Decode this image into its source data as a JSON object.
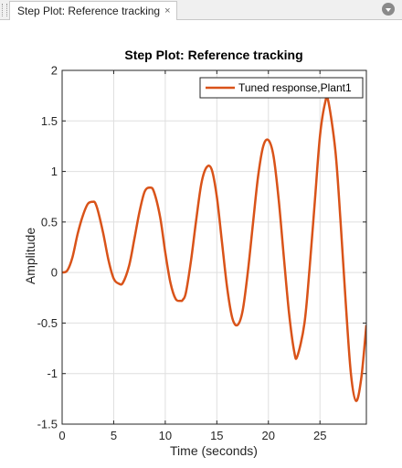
{
  "tab": {
    "title": "Step Plot: Reference tracking",
    "close_glyph": "×",
    "menu_icon": "chevron-down-circle-icon"
  },
  "chart_data": {
    "type": "line",
    "title": "Step Plot: Reference tracking",
    "xlabel": "Time (seconds)",
    "ylabel": "Amplitude",
    "xlim": [
      0,
      29.5
    ],
    "ylim": [
      -1.5,
      2
    ],
    "xticks": [
      0,
      5,
      10,
      15,
      20,
      25
    ],
    "yticks": [
      -1.5,
      -1,
      -0.5,
      0,
      0.5,
      1,
      1.5,
      2
    ],
    "xtick_labels": [
      "0",
      "5",
      "10",
      "15",
      "20",
      "25"
    ],
    "ytick_labels": [
      "-1.5",
      "-1",
      "-0.5",
      "0",
      "0.5",
      "1",
      "1.5",
      "2"
    ],
    "grid": true,
    "legend_position": "top-right",
    "line_color": "#d95319",
    "series": [
      {
        "name": "Tuned response,Plant1",
        "x": [
          0,
          0.5,
          1,
          1.5,
          2,
          2.5,
          3,
          3.2,
          3.5,
          4,
          4.5,
          5,
          5.5,
          5.9,
          6.5,
          7,
          7.5,
          8,
          8.5,
          8.9,
          9.5,
          10,
          10.5,
          11,
          11.5,
          11.7,
          12,
          12.5,
          13,
          13.5,
          14,
          14.5,
          15,
          15.5,
          16,
          16.5,
          17,
          17.5,
          18,
          18.5,
          19,
          19.5,
          20,
          20.5,
          21,
          21.5,
          22,
          22.5,
          22.8,
          23.5,
          24,
          24.5,
          25,
          25.5,
          25.8,
          26.5,
          27,
          27.5,
          28,
          28.5,
          29,
          29.5
        ],
        "y": [
          0,
          0.02,
          0.15,
          0.38,
          0.56,
          0.68,
          0.7,
          0.69,
          0.6,
          0.38,
          0.12,
          -0.06,
          -0.11,
          -0.1,
          0.07,
          0.33,
          0.6,
          0.8,
          0.84,
          0.8,
          0.55,
          0.2,
          -0.1,
          -0.26,
          -0.28,
          -0.27,
          -0.2,
          0.12,
          0.52,
          0.88,
          1.04,
          1.02,
          0.75,
          0.3,
          -0.15,
          -0.45,
          -0.52,
          -0.38,
          0.0,
          0.48,
          0.95,
          1.25,
          1.31,
          1.15,
          0.72,
          0.15,
          -0.4,
          -0.78,
          -0.83,
          -0.5,
          0.05,
          0.7,
          1.35,
          1.68,
          1.7,
          1.2,
          0.5,
          -0.3,
          -1.0,
          -1.27,
          -1.05,
          -0.52
        ]
      }
    ]
  }
}
